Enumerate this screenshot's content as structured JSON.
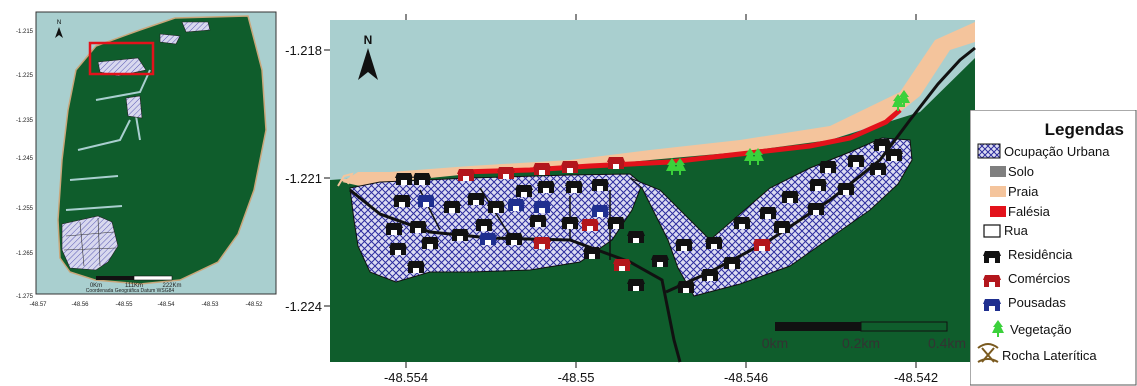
{
  "inset_map": {
    "north_label": "N",
    "y_ticks": [
      "-1.215",
      "-1.225",
      "-1.235",
      "-1.245",
      "-1.255",
      "-1.265",
      "-1.275"
    ],
    "x_ticks": [
      "-48.57",
      "-48.56",
      "-48.55",
      "-48.54",
      "-48.53",
      "-48.52"
    ],
    "scalebar_labels": [
      "0Km",
      "111Km",
      "222Km"
    ],
    "datum_text": "Coordenada Geográfica Datum WSG84"
  },
  "main_map": {
    "north_label": "N",
    "y_ticks": [
      "-1.218",
      "-1.221",
      "-1.224"
    ],
    "x_ticks": [
      "-48.554",
      "-48.55",
      "-48.546",
      "-48.542"
    ],
    "scalebar_labels": [
      "0km",
      "0.2km",
      "0.4km"
    ],
    "colors": {
      "sea": "#a9cfcf",
      "land": "#0f5d2c",
      "beach": "#f4c49c",
      "cliff": "#e3121b",
      "urban": "#2d2d9e",
      "vegetation": "#3bd13b"
    }
  },
  "legend": {
    "title": "Legendas",
    "items": [
      {
        "label": "Ocupação Urbana",
        "icon": "hatched-polygon-icon"
      },
      {
        "label": "Solo",
        "icon": "gray-swatch-icon"
      },
      {
        "label": "Praia",
        "icon": "beach-swatch-icon"
      },
      {
        "label": "Falésia",
        "icon": "cliff-swatch-icon"
      },
      {
        "label": "Rua",
        "icon": "street-swatch-icon"
      },
      {
        "label": "Residência",
        "icon": "house-black-icon"
      },
      {
        "label": "Comércios",
        "icon": "house-red-icon"
      },
      {
        "label": "Pousadas",
        "icon": "house-blue-icon"
      },
      {
        "label": "Vegetação",
        "icon": "tree-icon"
      },
      {
        "label": "Rocha Laterítica",
        "icon": "pickaxe-icon"
      }
    ]
  }
}
